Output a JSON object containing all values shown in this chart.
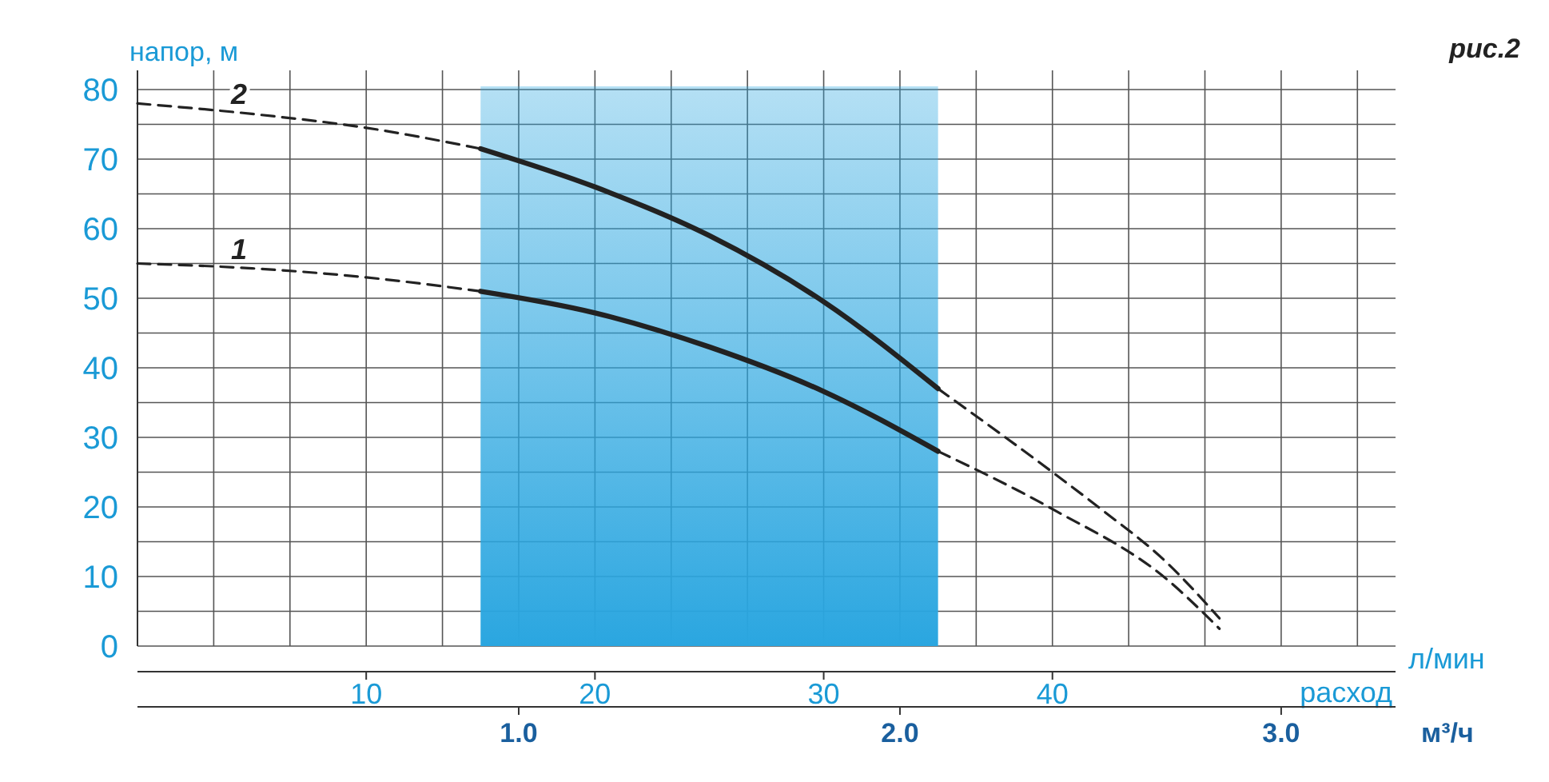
{
  "chart_data": {
    "type": "line",
    "ylabel": "напор, м",
    "xlabel": "л/мин",
    "x2label": "м³/ч",
    "annotations": [
      "рис.2",
      "расход"
    ],
    "xlim": [
      0,
      55
    ],
    "xticks": [
      10,
      20,
      30,
      40
    ],
    "x2lim": [
      0,
      3.3
    ],
    "x2ticks": [
      {
        "value": 0.2,
        "label": null
      },
      {
        "value": 0.4,
        "label": null
      },
      {
        "value": 0.6,
        "label": null
      },
      {
        "value": 0.8,
        "label": null
      },
      {
        "value": 1,
        "label": "1.0"
      },
      {
        "value": 1.2,
        "label": null
      },
      {
        "value": 1.4,
        "label": null
      },
      {
        "value": 1.6,
        "label": null
      },
      {
        "value": 1.8,
        "label": null
      },
      {
        "value": 2,
        "label": "2.0"
      },
      {
        "value": 2.2,
        "label": null
      },
      {
        "value": 2.4,
        "label": null
      },
      {
        "value": 2.6,
        "label": null
      },
      {
        "value": 2.8,
        "label": null
      },
      {
        "value": 3,
        "label": "3.0"
      },
      {
        "value": 3.2,
        "label": null
      }
    ],
    "ylim": [
      0,
      80
    ],
    "yticks": [
      0,
      {
        "value": 5,
        "label": null
      },
      10,
      {
        "value": 15,
        "label": null
      },
      20,
      {
        "value": 25,
        "label": null
      },
      30,
      {
        "value": 35,
        "label": null
      },
      40,
      {
        "value": 45,
        "label": null
      },
      50,
      {
        "value": 55,
        "label": null
      },
      60,
      {
        "value": 65,
        "label": null
      },
      70,
      {
        "value": 75,
        "label": null
      },
      80
    ],
    "grid": true,
    "bands": [
      {
        "axis": "x",
        "from": 15,
        "to": 35,
        "color": "#2aa6e0"
      }
    ],
    "series": [
      {
        "name": "2",
        "color": "#222222",
        "line_style": "dashed",
        "x": [
          0,
          5,
          10,
          15,
          25,
          35,
          40,
          42,
          45,
          47.3
        ],
        "values": [
          78,
          76.5,
          74.5,
          71.5,
          null,
          37,
          25,
          20,
          12,
          4
        ]
      },
      {
        "color": "#222222",
        "line_style": "solid",
        "x": [
          15,
          20,
          25,
          30,
          35
        ],
        "values": [
          71.5,
          66,
          59,
          49.5,
          37
        ]
      },
      {
        "name": "1",
        "color": "#222222",
        "line_style": "dashed",
        "x": [
          0,
          5,
          10,
          15,
          25,
          35,
          40,
          45,
          47.3
        ],
        "values": [
          55,
          54.3,
          53,
          51,
          null,
          28,
          19.7,
          9.6,
          2.5
        ]
      },
      {
        "color": "#222222",
        "line_style": "solid",
        "x": [
          15,
          20,
          25,
          30,
          35
        ],
        "values": [
          51,
          47.9,
          43,
          36.6,
          28
        ]
      }
    ]
  }
}
